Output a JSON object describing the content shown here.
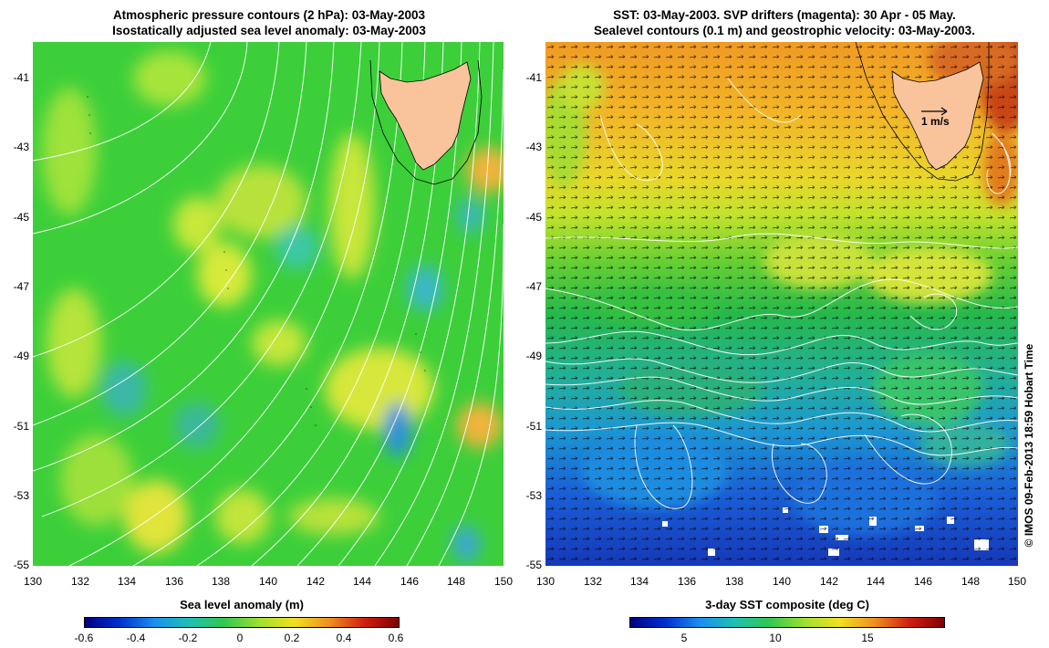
{
  "left_panel": {
    "title_line1": "Atmospheric pressure contours (2 hPa): 03-May-2003",
    "title_line2": "Isostatically adjusted sea level anomaly: 03-May-2003",
    "y_ticks": [
      "-41",
      "-43",
      "-45",
      "-47",
      "-49",
      "-51",
      "-53",
      "-55"
    ],
    "x_ticks": [
      "130",
      "132",
      "134",
      "136",
      "138",
      "140",
      "142",
      "144",
      "146",
      "148",
      "150"
    ],
    "colorbar_title": "Sea level anomaly (m)",
    "colorbar_ticks": [
      "-0.6",
      "-0.4",
      "-0.2",
      "0",
      "0.2",
      "0.4",
      "0.6"
    ]
  },
  "right_panel": {
    "title_line1": "SST: 03-May-2003. SVP drifters (magenta): 30 Apr - 05 May.",
    "title_line2": "Sealevel contours (0.1 m) and geostrophic velocity: 03-May-2003.",
    "y_ticks": [
      "-41",
      "-43",
      "-45",
      "-47",
      "-49",
      "-51",
      "-53",
      "-55"
    ],
    "x_ticks": [
      "130",
      "132",
      "134",
      "136",
      "138",
      "140",
      "142",
      "144",
      "146",
      "148",
      "150"
    ],
    "velocity_scale_label": "1 m/s",
    "colorbar_title": "3-day SST composite (deg C)",
    "colorbar_ticks": [
      "5",
      "10",
      "15"
    ]
  },
  "credit": "© IMOS 09-Feb-2013 18:59 Hobart Time",
  "colors": {
    "land": "#f9c49c",
    "sla_base": "#33cc33",
    "contour": "#ffffff"
  }
}
